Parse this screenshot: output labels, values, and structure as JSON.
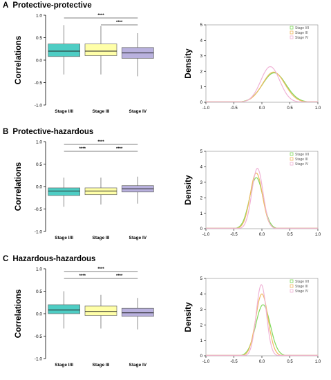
{
  "figure": {
    "boxplot_ylabel": "Correlations",
    "density_ylabel": "Density",
    "significance_label": "****",
    "categories": [
      "Stage I/II",
      "Stage III",
      "Stage IV"
    ],
    "stage_colors": [
      "#4ECDC4",
      "#FFFFA8",
      "#B9B1DE"
    ],
    "density_colors": [
      "#7ED957",
      "#F0B860",
      "#F0B2D6"
    ]
  },
  "chart_data": [
    {
      "type": "box",
      "panel_letter": "A",
      "title": "Protective-protective",
      "categories": [
        "Stage I/II",
        "Stage III",
        "Stage IV"
      ],
      "boxes": [
        {
          "min": -0.32,
          "q1": 0.08,
          "median": 0.2,
          "q3": 0.36,
          "max": 0.78
        },
        {
          "min": -0.32,
          "q1": 0.1,
          "median": 0.2,
          "q3": 0.36,
          "max": 0.76
        },
        {
          "min": -0.36,
          "q1": 0.04,
          "median": 0.16,
          "q3": 0.28,
          "max": 0.6
        }
      ],
      "ylim": [
        -1.0,
        1.0
      ],
      "yticks": [
        "-1.0",
        "-0.5",
        "0.0",
        "0.5",
        "1.0"
      ],
      "ylabel": "Correlations",
      "significance": [
        {
          "from": 0,
          "to": 2,
          "label": "****"
        },
        {
          "from": 1,
          "to": 2,
          "label": "****"
        }
      ]
    },
    {
      "type": "line",
      "panel_letter": "A",
      "xlim": [
        -1.0,
        1.0
      ],
      "ylim": [
        0,
        5
      ],
      "xticks": [
        "-1.0",
        "-0.5",
        "0.0",
        "0.5",
        "1.0"
      ],
      "yticks": [
        "0",
        "1",
        "2",
        "3",
        "4",
        "5"
      ],
      "ylabel": "Density",
      "legend_position": "top-right",
      "series": [
        {
          "name": "Stage I/II",
          "mean": 0.22,
          "sd": 0.21,
          "peak": 1.9
        },
        {
          "name": "Stage III",
          "mean": 0.21,
          "sd": 0.2,
          "peak": 1.95
        },
        {
          "name": "Stage IV",
          "mean": 0.15,
          "sd": 0.17,
          "peak": 2.3
        }
      ]
    },
    {
      "type": "box",
      "panel_letter": "B",
      "title": "Protective-hazardous",
      "categories": [
        "Stage I/II",
        "Stage III",
        "Stage IV"
      ],
      "boxes": [
        {
          "min": -0.45,
          "q1": -0.2,
          "median": -0.1,
          "q3": -0.03,
          "max": 0.2
        },
        {
          "min": -0.4,
          "q1": -0.18,
          "median": -0.1,
          "q3": -0.03,
          "max": 0.2
        },
        {
          "min": -0.38,
          "q1": -0.12,
          "median": -0.05,
          "q3": 0.02,
          "max": 0.22
        }
      ],
      "ylim": [
        -1.0,
        1.0
      ],
      "yticks": [
        "-1.0",
        "-0.5",
        "0.0",
        "0.5",
        "1.0"
      ],
      "ylabel": "Correlations",
      "significance": [
        {
          "from": 0,
          "to": 2,
          "label": "****"
        },
        {
          "from": 0,
          "to": 1,
          "label": "****"
        },
        {
          "from": 1,
          "to": 2,
          "label": "****"
        }
      ]
    },
    {
      "type": "line",
      "panel_letter": "B",
      "xlim": [
        -1.0,
        1.0
      ],
      "ylim": [
        0,
        5
      ],
      "xticks": [
        "-1.0",
        "-0.5",
        "0.0",
        "0.5",
        "1.0"
      ],
      "yticks": [
        "0",
        "1",
        "2",
        "3",
        "4",
        "5"
      ],
      "ylabel": "Density",
      "legend_position": "top-right",
      "series": [
        {
          "name": "Stage I/II",
          "mean": -0.1,
          "sd": 0.12,
          "peak": 3.3
        },
        {
          "name": "Stage III",
          "mean": -0.1,
          "sd": 0.11,
          "peak": 3.6
        },
        {
          "name": "Stage IV",
          "mean": -0.08,
          "sd": 0.1,
          "peak": 3.9
        }
      ]
    },
    {
      "type": "box",
      "panel_letter": "C",
      "title": "Hazardous-hazardous",
      "categories": [
        "Stage I/II",
        "Stage III",
        "Stage IV"
      ],
      "boxes": [
        {
          "min": -0.33,
          "q1": 0.0,
          "median": 0.08,
          "q3": 0.2,
          "max": 0.5
        },
        {
          "min": -0.33,
          "q1": -0.04,
          "median": 0.05,
          "q3": 0.17,
          "max": 0.42
        },
        {
          "min": -0.35,
          "q1": -0.06,
          "median": 0.02,
          "q3": 0.12,
          "max": 0.35
        }
      ],
      "ylim": [
        -1.0,
        1.0
      ],
      "yticks": [
        "-1.0",
        "-0.5",
        "0.0",
        "0.5",
        "1.0"
      ],
      "ylabel": "Correlations",
      "significance": [
        {
          "from": 0,
          "to": 2,
          "label": "****"
        },
        {
          "from": 0,
          "to": 1,
          "label": "****"
        },
        {
          "from": 1,
          "to": 2,
          "label": "****"
        }
      ]
    },
    {
      "type": "line",
      "panel_letter": "C",
      "xlim": [
        -1.0,
        1.0
      ],
      "ylim": [
        0,
        5
      ],
      "xticks": [
        "-1.0",
        "-0.5",
        "0.0",
        "0.5",
        "1.0"
      ],
      "yticks": [
        "0",
        "1",
        "2",
        "3",
        "4",
        "5"
      ],
      "ylabel": "Density",
      "legend_position": "top-right",
      "series": [
        {
          "name": "Stage I/II",
          "mean": 0.02,
          "sd": 0.13,
          "peak": 3.3
        },
        {
          "name": "Stage III",
          "mean": 0.0,
          "sd": 0.11,
          "peak": 4.0
        },
        {
          "name": "Stage IV",
          "mean": -0.01,
          "sd": 0.09,
          "peak": 4.6
        }
      ]
    }
  ]
}
